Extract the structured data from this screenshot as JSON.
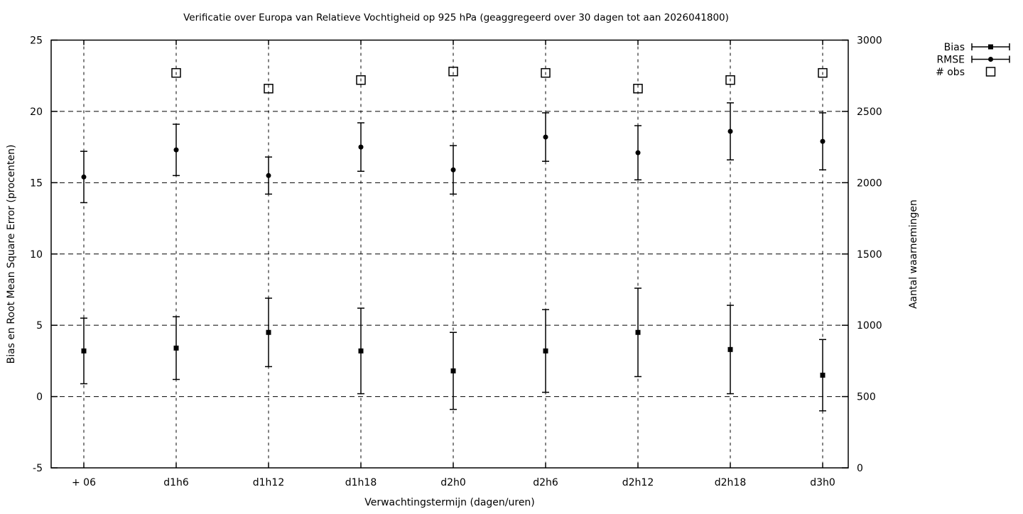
{
  "chart_data": {
    "type": "line",
    "title": "Verificatie over Europa van Relatieve Vochtigheid op 925 hPa (geaggregeerd over 30 dagen tot aan 2026041800)",
    "xlabel": "Verwachtingstermijn (dagen/uren)",
    "ylabel_left": "Bias en Root Mean Square Error (procenten)",
    "ylabel_right": "Aantal waarnemingen",
    "categories": [
      "+ 06",
      "d1h6",
      "d1h12",
      "d1h18",
      "d2h0",
      "d2h6",
      "d2h12",
      "d2h18",
      "d3h0"
    ],
    "y_left_axis": {
      "min": -5,
      "max": 25,
      "ticks": [
        25,
        20,
        15,
        10,
        5,
        0,
        -5
      ]
    },
    "y_right_axis": {
      "min": 0,
      "max": 3000,
      "ticks": [
        3000,
        2500,
        2000,
        1500,
        1000,
        500,
        0
      ]
    },
    "grid": true,
    "legend_position": "top-right-outside",
    "colors": {
      "foreground": "#000000",
      "background": "#ffffff"
    },
    "series": [
      {
        "name": "Bias",
        "axis": "left",
        "marker": "filled-square",
        "style": "errorbars",
        "values": [
          3.2,
          3.4,
          4.5,
          3.2,
          1.8,
          3.2,
          4.5,
          3.3,
          1.5
        ],
        "errors": [
          2.3,
          2.2,
          2.4,
          3.0,
          2.7,
          2.9,
          3.1,
          3.1,
          2.5
        ]
      },
      {
        "name": "RMSE",
        "axis": "left",
        "marker": "filled-circle",
        "style": "errorbars",
        "values": [
          15.4,
          17.3,
          15.5,
          17.5,
          15.9,
          18.2,
          17.1,
          18.6,
          17.9
        ],
        "errors": [
          1.8,
          1.8,
          1.3,
          1.7,
          1.7,
          1.7,
          1.9,
          2.0,
          2.0
        ]
      },
      {
        "name": "# obs",
        "axis": "right",
        "marker": "open-square",
        "style": "points",
        "values": [
          null,
          2770,
          2660,
          2720,
          2780,
          2770,
          2660,
          2720,
          2770
        ]
      }
    ]
  }
}
